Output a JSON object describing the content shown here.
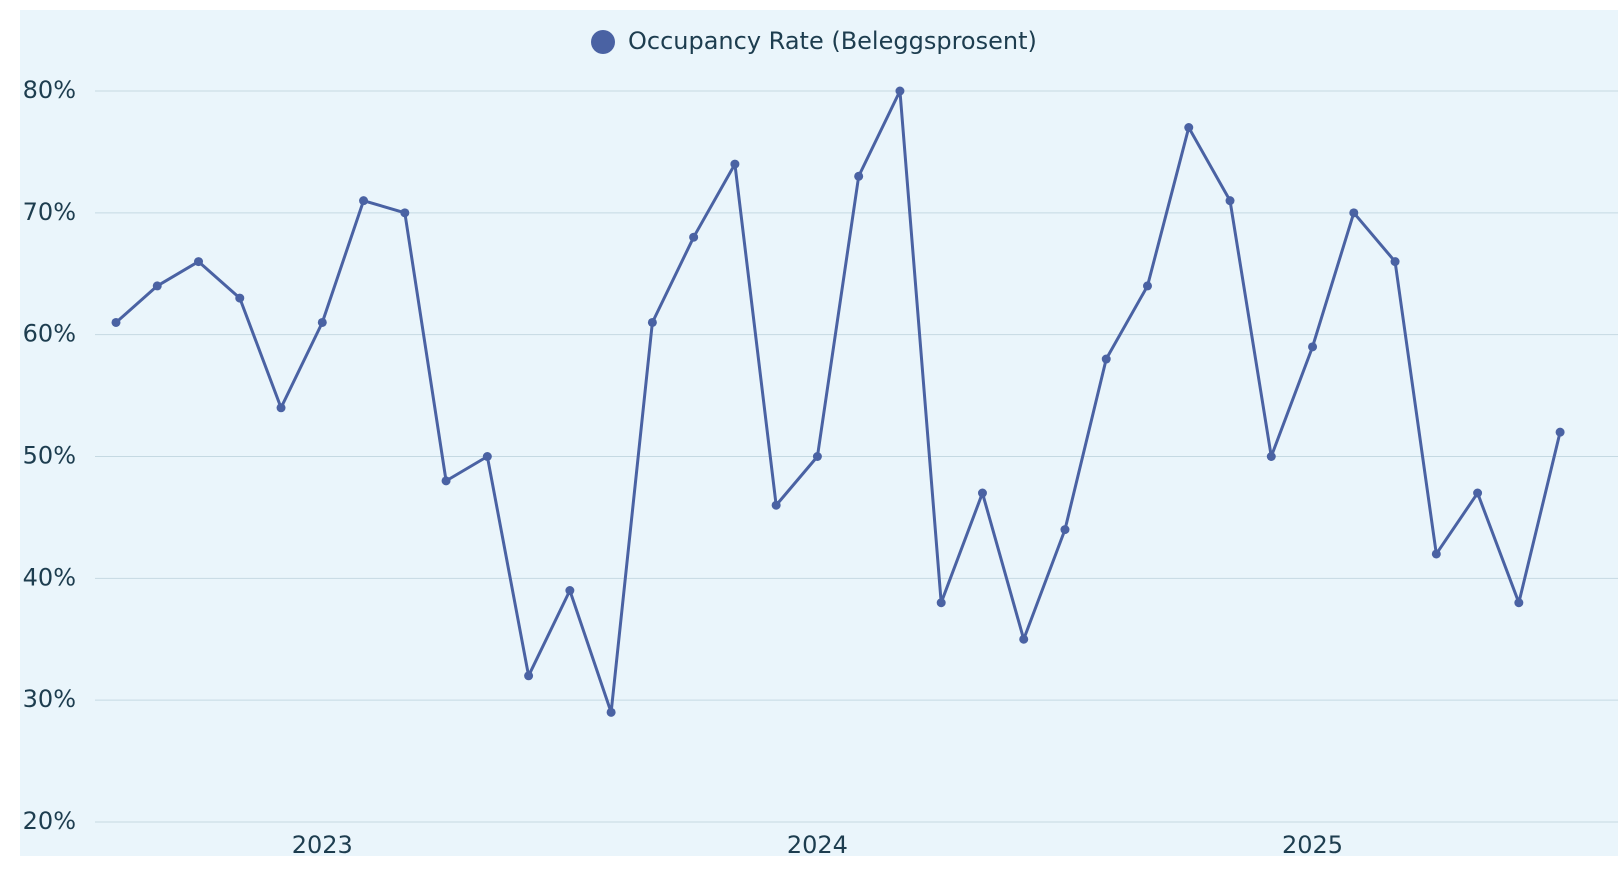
{
  "chart_data": {
    "type": "line",
    "categories": [
      null,
      null,
      null,
      null,
      null,
      "2023",
      null,
      null,
      null,
      null,
      null,
      null,
      null,
      null,
      null,
      null,
      null,
      "2024",
      null,
      null,
      null,
      null,
      null,
      null,
      null,
      null,
      null,
      null,
      null,
      "2025",
      null,
      null,
      null,
      null,
      null,
      null
    ],
    "series": [
      {
        "name": "Occupancy Rate (Beleggsprosent)",
        "color": "#4a62a3",
        "values": [
          61,
          64,
          66,
          63,
          54,
          61,
          71,
          70,
          48,
          50,
          32,
          39,
          29,
          61,
          68,
          74,
          46,
          50,
          73,
          80,
          38,
          47,
          35,
          44,
          58,
          64,
          77,
          71,
          50,
          59,
          70,
          66,
          42,
          47,
          38,
          52
        ]
      }
    ],
    "ylim": [
      20,
      80
    ],
    "yticks": [
      {
        "value": 20,
        "label": "20%"
      },
      {
        "value": 30,
        "label": "30%"
      },
      {
        "value": 40,
        "label": "40%"
      },
      {
        "value": 50,
        "label": "50%"
      },
      {
        "value": 60,
        "label": "60%"
      },
      {
        "value": 70,
        "label": "70%"
      },
      {
        "value": 80,
        "label": "80%"
      }
    ],
    "grid": true,
    "legend": "top"
  }
}
